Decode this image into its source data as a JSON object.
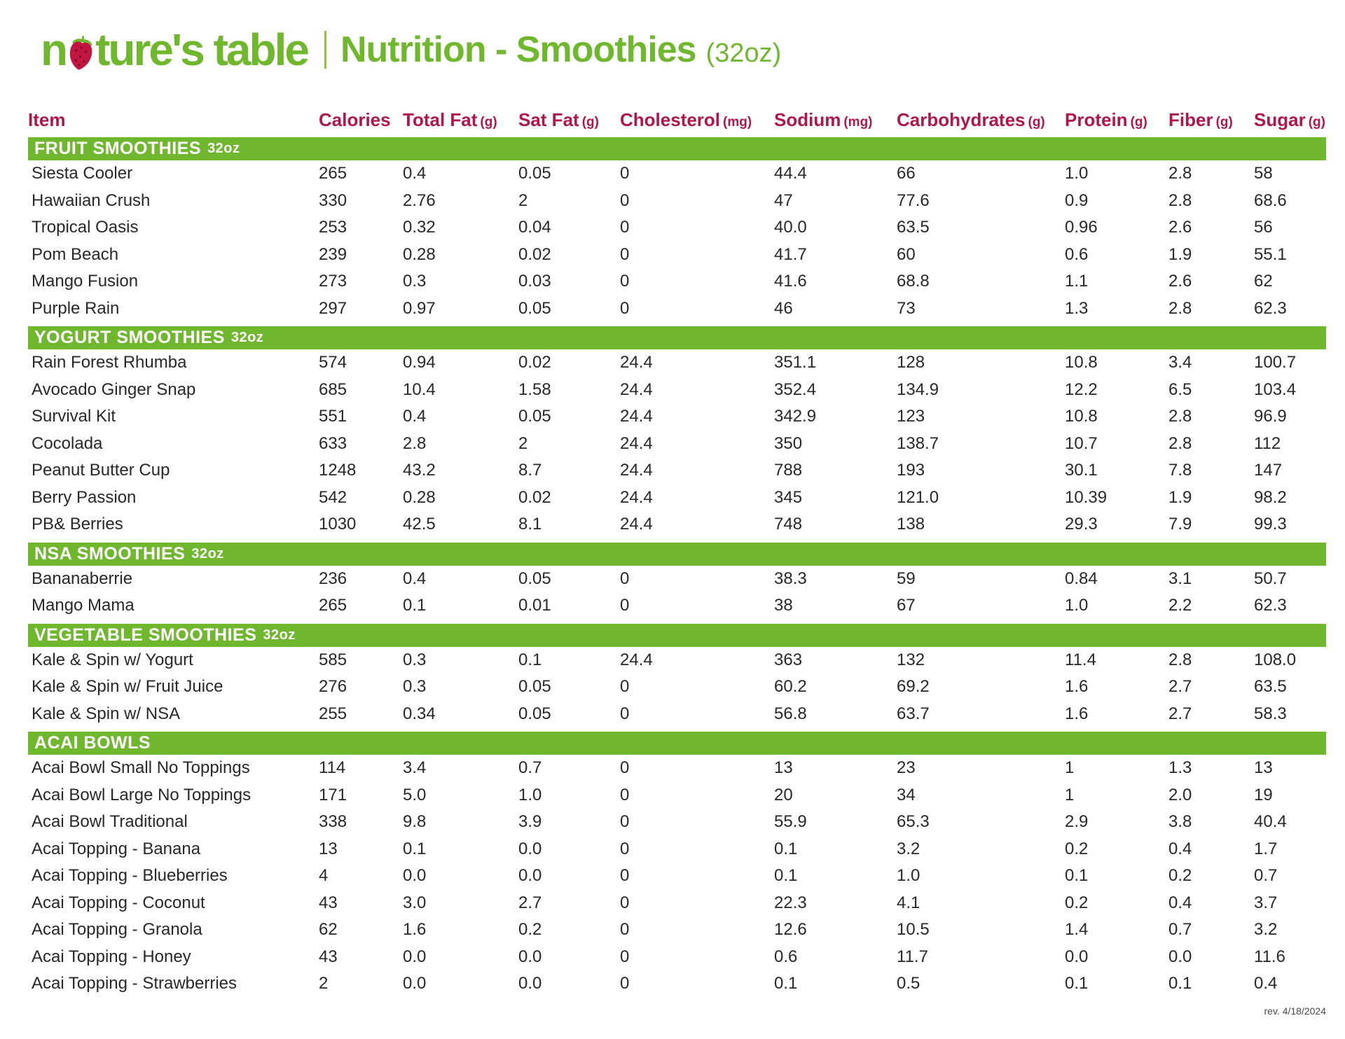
{
  "brand": {
    "logo_left": "n",
    "logo_right": "ture's table"
  },
  "header": {
    "title": "Nutrition - Smoothies",
    "size_note": "(32oz)"
  },
  "footer": {
    "revision": "rev. 4/18/2024"
  },
  "colors": {
    "green": "#6FB82E",
    "crimson": "#B31548",
    "text": "#29272A"
  },
  "table": {
    "columns": [
      {
        "label": "Item",
        "unit": ""
      },
      {
        "label": "Calories",
        "unit": ""
      },
      {
        "label": "Total Fat",
        "unit": "(g)"
      },
      {
        "label": "Sat Fat",
        "unit": "(g)"
      },
      {
        "label": "Cholesterol",
        "unit": "(mg)"
      },
      {
        "label": "Sodium",
        "unit": "(mg)"
      },
      {
        "label": "Carbohydrates",
        "unit": "(g)"
      },
      {
        "label": "Protein",
        "unit": "(g)"
      },
      {
        "label": "Fiber",
        "unit": "(g)"
      },
      {
        "label": "Sugar",
        "unit": "(g)"
      }
    ],
    "sections": [
      {
        "title": "FRUIT SMOOTHIES",
        "size": "32oz",
        "rows": [
          [
            "Siesta Cooler",
            "265",
            "0.4",
            "0.05",
            "0",
            "44.4",
            "66",
            "1.0",
            "2.8",
            "58"
          ],
          [
            "Hawaiian Crush",
            "330",
            "2.76",
            "2",
            "0",
            "47",
            "77.6",
            "0.9",
            "2.8",
            "68.6"
          ],
          [
            "Tropical Oasis",
            "253",
            "0.32",
            "0.04",
            "0",
            "40.0",
            "63.5",
            "0.96",
            "2.6",
            "56"
          ],
          [
            "Pom Beach",
            "239",
            "0.28",
            "0.02",
            "0",
            "41.7",
            "60",
            "0.6",
            "1.9",
            "55.1"
          ],
          [
            "Mango Fusion",
            "273",
            "0.3",
            "0.03",
            "0",
            "41.6",
            "68.8",
            "1.1",
            "2.6",
            "62"
          ],
          [
            "Purple Rain",
            "297",
            "0.97",
            "0.05",
            "0",
            "46",
            "73",
            "1.3",
            "2.8",
            "62.3"
          ]
        ]
      },
      {
        "title": "YOGURT SMOOTHIES",
        "size": "32oz",
        "rows": [
          [
            "Rain Forest Rhumba",
            "574",
            "0.94",
            "0.02",
            "24.4",
            "351.1",
            "128",
            "10.8",
            "3.4",
            "100.7"
          ],
          [
            "Avocado Ginger Snap",
            "685",
            "10.4",
            "1.58",
            "24.4",
            "352.4",
            "134.9",
            "12.2",
            "6.5",
            "103.4"
          ],
          [
            "Survival Kit",
            "551",
            "0.4",
            "0.05",
            "24.4",
            "342.9",
            "123",
            "10.8",
            "2.8",
            "96.9"
          ],
          [
            "Cocolada",
            "633",
            "2.8",
            "2",
            "24.4",
            "350",
            "138.7",
            "10.7",
            "2.8",
            "112"
          ],
          [
            "Peanut Butter Cup",
            "1248",
            "43.2",
            "8.7",
            "24.4",
            "788",
            "193",
            "30.1",
            "7.8",
            "147"
          ],
          [
            "Berry Passion",
            "542",
            "0.28",
            "0.02",
            "24.4",
            "345",
            "121.0",
            "10.39",
            "1.9",
            "98.2"
          ],
          [
            "PB& Berries",
            "1030",
            "42.5",
            "8.1",
            "24.4",
            "748",
            "138",
            "29.3",
            "7.9",
            "99.3"
          ]
        ]
      },
      {
        "title": "NSA SMOOTHIES",
        "size": "32oz",
        "rows": [
          [
            "Bananaberrie",
            "236",
            "0.4",
            "0.05",
            "0",
            "38.3",
            "59",
            "0.84",
            "3.1",
            "50.7"
          ],
          [
            "Mango Mama",
            "265",
            "0.1",
            "0.01",
            "0",
            "38",
            "67",
            "1.0",
            "2.2",
            "62.3"
          ]
        ]
      },
      {
        "title": "VEGETABLE SMOOTHIES",
        "size": "32oz",
        "rows": [
          [
            "Kale & Spin w/ Yogurt",
            "585",
            "0.3",
            "0.1",
            "24.4",
            "363",
            "132",
            "11.4",
            "2.8",
            "108.0"
          ],
          [
            "Kale & Spin w/ Fruit Juice",
            "276",
            "0.3",
            "0.05",
            "0",
            "60.2",
            "69.2",
            "1.6",
            "2.7",
            "63.5"
          ],
          [
            "Kale & Spin w/ NSA",
            "255",
            "0.34",
            "0.05",
            "0",
            "56.8",
            "63.7",
            "1.6",
            "2.7",
            "58.3"
          ]
        ]
      },
      {
        "title": "ACAI BOWLS",
        "size": "",
        "rows": [
          [
            "Acai Bowl Small No Toppings",
            "114",
            "3.4",
            "0.7",
            "0",
            "13",
            "23",
            "1",
            "1.3",
            "13"
          ],
          [
            "Acai Bowl Large No Toppings",
            "171",
            "5.0",
            "1.0",
            "0",
            "20",
            "34",
            "1",
            "2.0",
            "19"
          ],
          [
            "Acai Bowl Traditional",
            "338",
            "9.8",
            "3.9",
            "0",
            "55.9",
            "65.3",
            "2.9",
            "3.8",
            "40.4"
          ],
          [
            "Acai Topping - Banana",
            "13",
            "0.1",
            "0.0",
            "0",
            "0.1",
            "3.2",
            "0.2",
            "0.4",
            "1.7"
          ],
          [
            "Acai Topping - Blueberries",
            "4",
            "0.0",
            "0.0",
            "0",
            "0.1",
            "1.0",
            "0.1",
            "0.2",
            "0.7"
          ],
          [
            "Acai Topping - Coconut",
            "43",
            "3.0",
            "2.7",
            "0",
            "22.3",
            "4.1",
            "0.2",
            "0.4",
            "3.7"
          ],
          [
            "Acai Topping - Granola",
            "62",
            "1.6",
            "0.2",
            "0",
            "12.6",
            "10.5",
            "1.4",
            "0.7",
            "3.2"
          ],
          [
            "Acai Topping - Honey",
            "43",
            "0.0",
            "0.0",
            "0",
            "0.6",
            "11.7",
            "0.0",
            "0.0",
            "11.6"
          ],
          [
            "Acai Topping - Strawberries",
            "2",
            "0.0",
            "0.0",
            "0",
            "0.1",
            "0.5",
            "0.1",
            "0.1",
            "0.4"
          ]
        ]
      }
    ]
  }
}
